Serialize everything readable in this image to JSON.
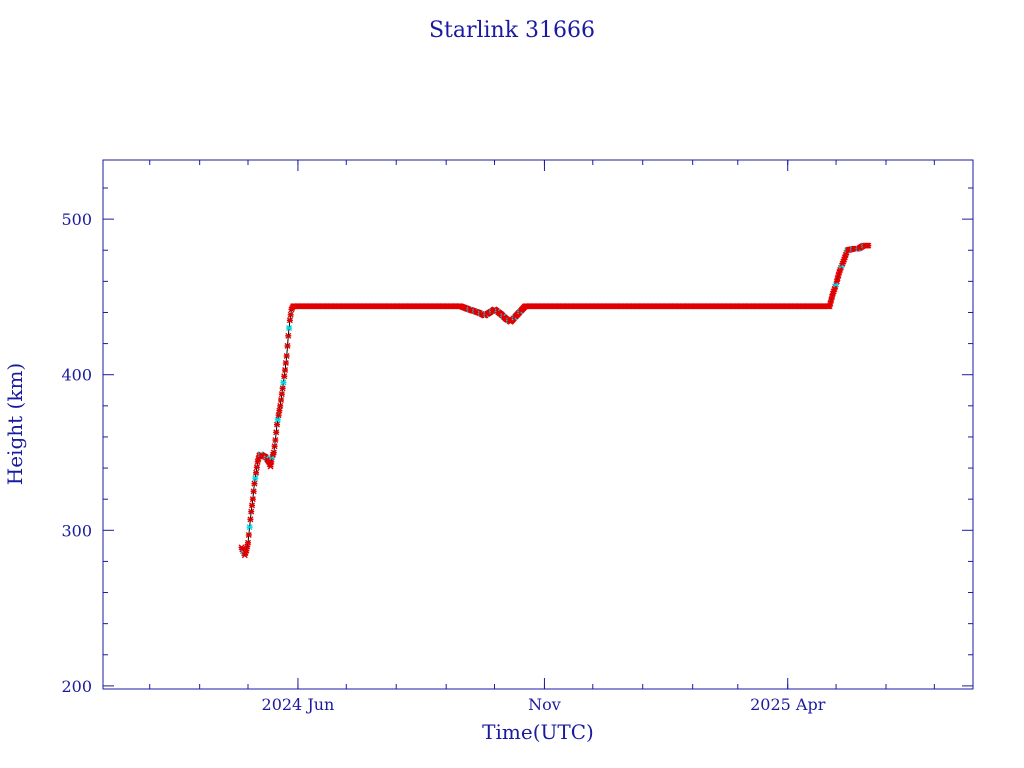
{
  "chart_data": {
    "type": "line",
    "title": "Starlink 31666",
    "xlabel": "Time(UTC)",
    "ylabel": "Height (km)",
    "xlim": [
      "2024-02-01",
      "2025-07-25"
    ],
    "ylim": [
      198,
      538
    ],
    "x_ticks": [
      {
        "date": "2024-06-01",
        "label": "2024 Jun"
      },
      {
        "date": "2024-11-01",
        "label": "Nov"
      },
      {
        "date": "2025-04-01",
        "label": "2025 Apr"
      }
    ],
    "y_ticks": [
      {
        "value": 200,
        "label": "200"
      },
      {
        "value": 300,
        "label": "300"
      },
      {
        "value": 400,
        "label": "400"
      },
      {
        "value": 500,
        "label": "500"
      }
    ],
    "grid": false,
    "colors": {
      "axis": "#1a1aa0",
      "marker": "#e00000",
      "marker_alt": "#00d8e8",
      "line": "#000000"
    },
    "series": [
      {
        "x": [
          "2024-04-27",
          "2024-04-29",
          "2024-04-30",
          "2024-05-01",
          "2024-05-02",
          "2024-05-03",
          "2024-05-04",
          "2024-05-05",
          "2024-05-06",
          "2024-05-07",
          "2024-05-08",
          "2024-05-09",
          "2024-05-10",
          "2024-05-12",
          "2024-05-14",
          "2024-05-15",
          "2024-05-16",
          "2024-05-17",
          "2024-05-18",
          "2024-05-19",
          "2024-05-21",
          "2024-05-23",
          "2024-05-24",
          "2024-05-25",
          "2024-05-26",
          "2024-05-27",
          "2024-05-28",
          "2024-05-29",
          "2024-05-30",
          "2024-05-31",
          "2024-06-10",
          "2024-07-01",
          "2024-08-01",
          "2024-09-01",
          "2024-09-10",
          "2024-09-15",
          "2024-09-18",
          "2024-09-21",
          "2024-09-25",
          "2024-10-01",
          "2024-10-05",
          "2024-10-08",
          "2024-10-11",
          "2024-10-20",
          "2024-11-15",
          "2024-12-15",
          "2025-01-15",
          "2025-02-15",
          "2025-03-15",
          "2025-04-15",
          "2025-04-27",
          "2025-04-28",
          "2025-04-29",
          "2025-05-01",
          "2025-05-03",
          "2025-05-06",
          "2025-05-08",
          "2025-05-12",
          "2025-05-15",
          "2025-05-18",
          "2025-05-21"
        ],
        "y": [
          289,
          284,
          287,
          292,
          302,
          312,
          320,
          330,
          337,
          344,
          348,
          349,
          348,
          347,
          344,
          341,
          347,
          350,
          358,
          368,
          380,
          395,
          403,
          412,
          425,
          435,
          442,
          444,
          444,
          444,
          444,
          444,
          444,
          444,
          444,
          442,
          441,
          440,
          438,
          442,
          439,
          436,
          434,
          444,
          444,
          444,
          444,
          444,
          444,
          444,
          444,
          448,
          452,
          458,
          466,
          474,
          480,
          481,
          481,
          483,
          483
        ]
      }
    ]
  }
}
